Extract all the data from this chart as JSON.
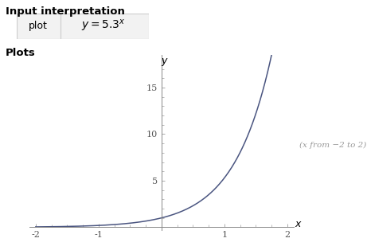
{
  "title_text": "Input interpretation",
  "plots_text": "Plots",
  "box_label1": "plot",
  "annotation": "(x from −2 to 2)",
  "x_min": -2,
  "x_max": 2,
  "y_min": -0.3,
  "y_max": 18.5,
  "base": 5.3,
  "x_ticks": [
    -2,
    -1,
    1,
    2
  ],
  "y_ticks": [
    5,
    10,
    15
  ],
  "line_color": "#4a5580",
  "bg_color": "#ffffff",
  "axis_color": "#888888",
  "tick_color": "#555555",
  "text_color": "#000000",
  "annotation_color": "#999999",
  "box_border_color": "#cccccc",
  "box_bg_color": "#f2f2f2"
}
